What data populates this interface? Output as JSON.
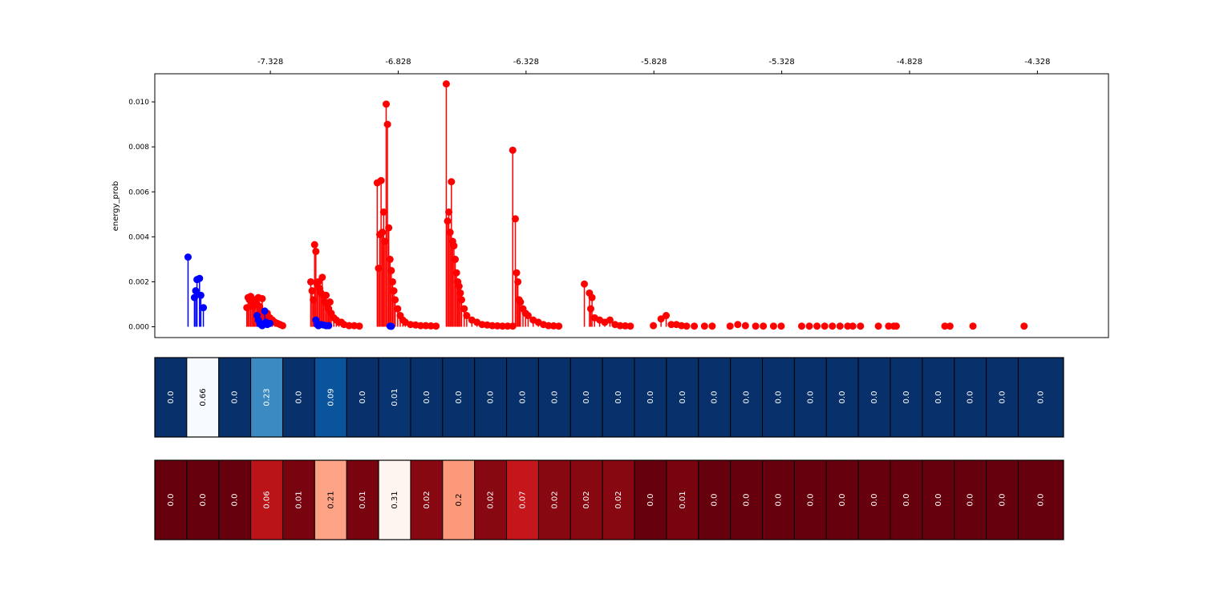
{
  "chart_data": {
    "type": "stem",
    "ylabel": "energy_prob",
    "xlim": [
      -7.78,
      -4.05
    ],
    "ylim": [
      -0.00048,
      0.01125
    ],
    "xtick_values": [
      -7.328,
      -6.828,
      -6.328,
      -5.828,
      -5.328,
      -4.828,
      -4.328
    ],
    "xtick_labels": [
      "-7.328",
      "-6.828",
      "-6.328",
      "-5.828",
      "-5.328",
      "-4.828",
      "-4.328"
    ],
    "ytick_values": [
      0.0,
      0.002,
      0.004,
      0.006,
      0.008,
      0.01
    ],
    "ytick_labels": [
      "0.000",
      "0.002",
      "0.004",
      "0.006",
      "0.008",
      "0.010"
    ],
    "series": [
      {
        "name": "red",
        "color": "#ff0000",
        "points": [
          [
            -7.42,
            0.00085
          ],
          [
            -7.415,
            0.0013
          ],
          [
            -7.41,
            0.0012
          ],
          [
            -7.405,
            0.00135
          ],
          [
            -7.4,
            0.0011
          ],
          [
            -7.395,
            0.0009
          ],
          [
            -7.39,
            0.0012
          ],
          [
            -7.385,
            0.00115
          ],
          [
            -7.38,
            0.001
          ],
          [
            -7.375,
            0.0013
          ],
          [
            -7.37,
            0.0009
          ],
          [
            -7.365,
            0.0007
          ],
          [
            -7.36,
            0.00125
          ],
          [
            -7.355,
            0.0006
          ],
          [
            -7.35,
            0.00045
          ],
          [
            -7.34,
            0.0006
          ],
          [
            -7.33,
            0.0004
          ],
          [
            -7.32,
            0.0003
          ],
          [
            -7.31,
            0.0002
          ],
          [
            -7.3,
            0.00015
          ],
          [
            -7.29,
            0.0001
          ],
          [
            -7.28,
            5e-05
          ],
          [
            -7.17,
            0.002
          ],
          [
            -7.165,
            0.0016
          ],
          [
            -7.16,
            0.0012
          ],
          [
            -7.155,
            0.00365
          ],
          [
            -7.15,
            0.00335
          ],
          [
            -7.145,
            0.0019
          ],
          [
            -7.14,
            0.002
          ],
          [
            -7.135,
            0.0017
          ],
          [
            -7.13,
            0.0015
          ],
          [
            -7.125,
            0.0022
          ],
          [
            -7.12,
            0.0014
          ],
          [
            -7.115,
            0.0011
          ],
          [
            -7.11,
            0.0014
          ],
          [
            -7.105,
            0.001
          ],
          [
            -7.1,
            0.0008
          ],
          [
            -7.095,
            0.0011
          ],
          [
            -7.09,
            0.0006
          ],
          [
            -7.08,
            0.0004
          ],
          [
            -7.07,
            0.0003
          ],
          [
            -7.06,
            0.0002
          ],
          [
            -7.05,
            0.0002
          ],
          [
            -7.04,
            0.0001
          ],
          [
            -7.02,
            5e-05
          ],
          [
            -7.0,
            5e-05
          ],
          [
            -6.98,
            3e-05
          ],
          [
            -6.91,
            0.0064
          ],
          [
            -6.905,
            0.0026
          ],
          [
            -6.9,
            0.0041
          ],
          [
            -6.895,
            0.0065
          ],
          [
            -6.89,
            0.0042
          ],
          [
            -6.885,
            0.0051
          ],
          [
            -6.88,
            0.0038
          ],
          [
            -6.875,
            0.0099
          ],
          [
            -6.87,
            0.009
          ],
          [
            -6.865,
            0.0044
          ],
          [
            -6.86,
            0.003
          ],
          [
            -6.855,
            0.0025
          ],
          [
            -6.85,
            0.002
          ],
          [
            -6.845,
            0.0016
          ],
          [
            -6.84,
            0.0012
          ],
          [
            -6.83,
            0.0008
          ],
          [
            -6.82,
            0.0005
          ],
          [
            -6.81,
            0.0003
          ],
          [
            -6.8,
            0.0002
          ],
          [
            -6.78,
            0.0001
          ],
          [
            -6.76,
            8e-05
          ],
          [
            -6.74,
            5e-05
          ],
          [
            -6.72,
            5e-05
          ],
          [
            -6.7,
            4e-05
          ],
          [
            -6.68,
            3e-05
          ],
          [
            -6.64,
            0.0108
          ],
          [
            -6.635,
            0.0047
          ],
          [
            -6.63,
            0.0051
          ],
          [
            -6.625,
            0.0042
          ],
          [
            -6.62,
            0.00645
          ],
          [
            -6.615,
            0.0038
          ],
          [
            -6.61,
            0.0036
          ],
          [
            -6.605,
            0.003
          ],
          [
            -6.6,
            0.0024
          ],
          [
            -6.595,
            0.002
          ],
          [
            -6.59,
            0.0018
          ],
          [
            -6.585,
            0.0015
          ],
          [
            -6.58,
            0.0012
          ],
          [
            -6.57,
            0.0008
          ],
          [
            -6.56,
            0.0005
          ],
          [
            -6.54,
            0.0003
          ],
          [
            -6.52,
            0.0002
          ],
          [
            -6.5,
            0.0001
          ],
          [
            -6.48,
            8e-05
          ],
          [
            -6.46,
            5e-05
          ],
          [
            -6.44,
            4e-05
          ],
          [
            -6.42,
            3e-05
          ],
          [
            -6.4,
            3e-05
          ],
          [
            -6.38,
            3e-05
          ],
          [
            -6.38,
            0.00785
          ],
          [
            -6.37,
            0.0048
          ],
          [
            -6.365,
            0.0024
          ],
          [
            -6.36,
            0.002
          ],
          [
            -6.355,
            0.0012
          ],
          [
            -6.35,
            0.0011
          ],
          [
            -6.34,
            0.0008
          ],
          [
            -6.33,
            0.0006
          ],
          [
            -6.32,
            0.0005
          ],
          [
            -6.3,
            0.0003
          ],
          [
            -6.28,
            0.0002
          ],
          [
            -6.26,
            0.0001
          ],
          [
            -6.24,
            5e-05
          ],
          [
            -6.22,
            4e-05
          ],
          [
            -6.2,
            3e-05
          ],
          [
            -6.1,
            0.0019
          ],
          [
            -6.08,
            0.0015
          ],
          [
            -6.07,
            0.0013
          ],
          [
            -6.075,
            0.0008
          ],
          [
            -6.06,
            0.0004
          ],
          [
            -6.04,
            0.0003
          ],
          [
            -6.02,
            0.0002
          ],
          [
            -6.0,
            0.0003
          ],
          [
            -5.98,
            0.0001
          ],
          [
            -5.96,
            5e-05
          ],
          [
            -5.94,
            4e-05
          ],
          [
            -5.92,
            3e-05
          ],
          [
            -5.83,
            5e-05
          ],
          [
            -5.8,
            0.00035
          ],
          [
            -5.78,
            0.0005
          ],
          [
            -5.76,
            0.0001
          ],
          [
            -5.74,
            0.0001
          ],
          [
            -5.72,
            5e-05
          ],
          [
            -5.7,
            3e-05
          ],
          [
            -5.67,
            3e-05
          ],
          [
            -5.63,
            3e-05
          ],
          [
            -5.6,
            3e-05
          ],
          [
            -5.53,
            3e-05
          ],
          [
            -5.5,
            0.0001
          ],
          [
            -5.47,
            5e-05
          ],
          [
            -5.43,
            3e-05
          ],
          [
            -5.4,
            3e-05
          ],
          [
            -5.36,
            3e-05
          ],
          [
            -5.33,
            3e-05
          ],
          [
            -5.25,
            3e-05
          ],
          [
            -5.22,
            3e-05
          ],
          [
            -5.19,
            3e-05
          ],
          [
            -5.16,
            3e-05
          ],
          [
            -5.13,
            3e-05
          ],
          [
            -5.1,
            3e-05
          ],
          [
            -5.07,
            3e-05
          ],
          [
            -5.05,
            3e-05
          ],
          [
            -5.02,
            3e-05
          ],
          [
            -4.95,
            3e-05
          ],
          [
            -4.91,
            3e-05
          ],
          [
            -4.89,
            3e-05
          ],
          [
            -4.88,
            3e-05
          ],
          [
            -4.69,
            3e-05
          ],
          [
            -4.67,
            3e-05
          ],
          [
            -4.58,
            3e-05
          ],
          [
            -4.38,
            3e-05
          ]
        ]
      },
      {
        "name": "blue",
        "color": "#0000ff",
        "points": [
          [
            -7.65,
            0.0031
          ],
          [
            -7.625,
            0.0013
          ],
          [
            -7.62,
            0.0016
          ],
          [
            -7.615,
            0.0021
          ],
          [
            -7.605,
            0.00215
          ],
          [
            -7.6,
            0.0014
          ],
          [
            -7.59,
            0.00085
          ],
          [
            -7.38,
            0.0005
          ],
          [
            -7.375,
            0.0003
          ],
          [
            -7.37,
            0.0002
          ],
          [
            -7.365,
            0.0001
          ],
          [
            -7.36,
            5e-05
          ],
          [
            -7.35,
            0.0007
          ],
          [
            -7.345,
            0.0002
          ],
          [
            -7.34,
            0.0001
          ],
          [
            -7.33,
            0.00015
          ],
          [
            -7.15,
            0.0003
          ],
          [
            -7.145,
            0.0001
          ],
          [
            -7.14,
            5e-05
          ],
          [
            -7.13,
            0.0001
          ],
          [
            -7.12,
            8e-05
          ],
          [
            -7.11,
            5e-05
          ],
          [
            -7.1,
            5e-05
          ],
          [
            -6.86,
            3e-05
          ],
          [
            -6.855,
            2e-05
          ]
        ]
      }
    ],
    "heatmap_rows": [
      {
        "name": "blue-row",
        "cmap": "Blues",
        "values": [
          0.0,
          0.66,
          0.0,
          0.23,
          0.0,
          0.09,
          0.0,
          0.01,
          0.0,
          0.0,
          0.0,
          0.0,
          0.0,
          0.0,
          0.0,
          0.0,
          0.0,
          0.0,
          0.0,
          0.0,
          0.0,
          0.0,
          0.0,
          0.0,
          0.0,
          0.0,
          0.0,
          0.0
        ],
        "labels": [
          "0.0",
          "0.66",
          "0.0",
          "0.23",
          "0.0",
          "0.09",
          "0.0",
          "0.01",
          "0.0",
          "0.0",
          "0.0",
          "0.0",
          "0.0",
          "0.0",
          "0.0",
          "0.0",
          "0.0",
          "0.0",
          "0.0",
          "0.0",
          "0.0",
          "0.0",
          "0.0",
          "0.0",
          "0.0",
          "0.0",
          "0.0",
          "0.0"
        ]
      },
      {
        "name": "red-row",
        "cmap": "Reds",
        "values": [
          0.0,
          0.0,
          0.0,
          0.06,
          0.01,
          0.21,
          0.01,
          0.31,
          0.02,
          0.2,
          0.02,
          0.07,
          0.02,
          0.02,
          0.02,
          0.0,
          0.01,
          0.0,
          0.0,
          0.0,
          0.0,
          0.0,
          0.0,
          0.0,
          0.0,
          0.0,
          0.0,
          0.0
        ],
        "labels": [
          "0.0",
          "0.0",
          "0.0",
          "0.06",
          "0.01",
          "0.21",
          "0.01",
          "0.31",
          "0.02",
          "0.2",
          "0.02",
          "0.07",
          "0.02",
          "0.02",
          "0.02",
          "0.0",
          "0.01",
          "0.0",
          "0.0",
          "0.0",
          "0.0",
          "0.0",
          "0.0",
          "0.0",
          "0.0",
          "0.0",
          "0.0",
          "0.0"
        ]
      }
    ]
  }
}
